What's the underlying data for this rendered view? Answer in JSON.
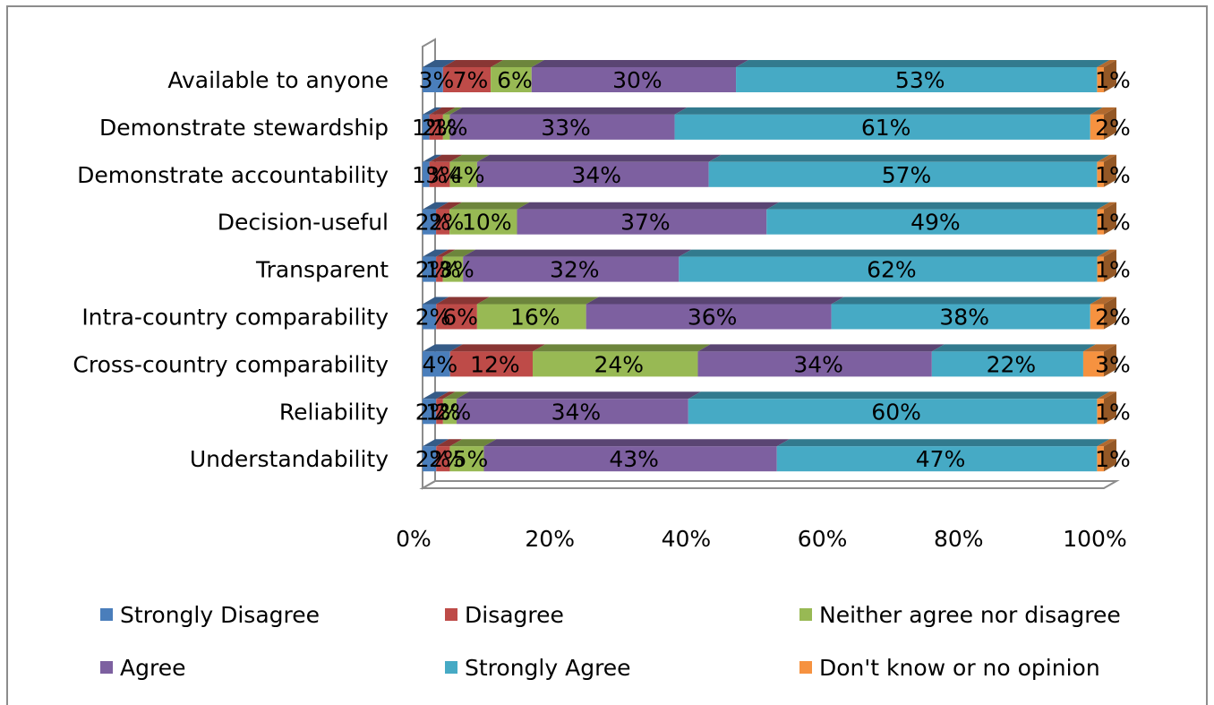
{
  "chart_data": {
    "type": "bar",
    "orientation": "horizontal",
    "stacked": "percent",
    "categories": [
      "Available to anyone",
      "Demonstrate stewardship",
      "Demonstrate accountability",
      "Decision-useful",
      "Transparent",
      "Intra-country comparability",
      "Cross-country comparability",
      "Reliability",
      "Understandability"
    ],
    "series": [
      {
        "name": "Strongly Disagree",
        "color": "#4a7ebb",
        "values": [
          3,
          1,
          1,
          2,
          2,
          2,
          4,
          2,
          2
        ],
        "labels": [
          "3%",
          "1%",
          "1%",
          "2%",
          "2%",
          "2%",
          "4%",
          "2%",
          "2%"
        ]
      },
      {
        "name": "Disagree",
        "color": "#be4b48",
        "values": [
          7,
          2,
          3,
          2,
          1,
          6,
          12,
          1,
          2
        ],
        "labels": [
          "7%",
          "2%",
          "3%",
          "2%",
          "1%",
          "6%",
          "12%",
          "1%",
          "2%"
        ]
      },
      {
        "name": "Neither agree nor disagree",
        "color": "#98b954",
        "values": [
          6,
          1,
          4,
          10,
          3,
          16,
          24,
          2,
          5
        ],
        "labels": [
          "6%",
          "1%",
          "4%",
          "10%",
          "3%",
          "16%",
          "24%",
          "2%",
          "5%"
        ]
      },
      {
        "name": "Agree",
        "color": "#7d60a0",
        "values": [
          30,
          33,
          34,
          37,
          32,
          36,
          34,
          34,
          43
        ],
        "labels": [
          "30%",
          "33%",
          "34%",
          "37%",
          "32%",
          "36%",
          "34%",
          "34%",
          "43%"
        ]
      },
      {
        "name": "Strongly Agree",
        "color": "#46aac5",
        "values": [
          53,
          61,
          57,
          49,
          62,
          38,
          22,
          60,
          47
        ],
        "labels": [
          "53%",
          "61%",
          "57%",
          "49%",
          "62%",
          "38%",
          "22%",
          "60%",
          "47%"
        ]
      },
      {
        "name": "Don't know or no opinion",
        "color": "#f69240",
        "values": [
          1,
          2,
          1,
          1,
          1,
          2,
          3,
          1,
          1
        ],
        "labels": [
          "1%",
          "2%",
          "1%",
          "1%",
          "1%",
          "2%",
          "3%",
          "1%",
          "1%"
        ]
      }
    ],
    "x_ticks": [
      "0%",
      "20%",
      "40%",
      "60%",
      "80%",
      "100%"
    ],
    "xlim": [
      0,
      100
    ],
    "grid": false,
    "legend_position": "bottom"
  }
}
